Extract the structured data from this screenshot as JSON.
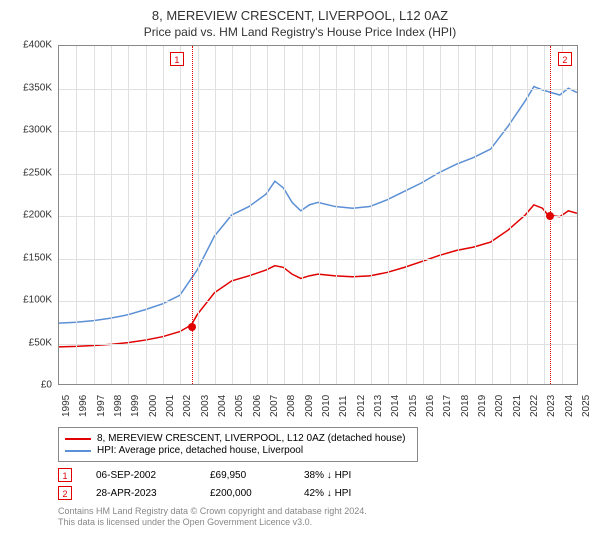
{
  "title": "8, MEREVIEW CRESCENT, LIVERPOOL, L12 0AZ",
  "subtitle": "Price paid vs. HM Land Registry's House Price Index (HPI)",
  "chart": {
    "type": "line",
    "background_color": "#ffffff",
    "grid_color": "#e0e0e0",
    "border_color": "#888888",
    "y_axis": {
      "min": 0,
      "max": 400000,
      "step": 50000,
      "labels": [
        "£0",
        "£50K",
        "£100K",
        "£150K",
        "£200K",
        "£250K",
        "£300K",
        "£350K",
        "£400K"
      ]
    },
    "x_axis": {
      "min": 1995,
      "max": 2025,
      "step": 1,
      "labels": [
        "1995",
        "1996",
        "1997",
        "1998",
        "1999",
        "2000",
        "2001",
        "2002",
        "2003",
        "2004",
        "2005",
        "2006",
        "2007",
        "2008",
        "2009",
        "2010",
        "2011",
        "2012",
        "2013",
        "2014",
        "2015",
        "2016",
        "2017",
        "2018",
        "2019",
        "2020",
        "2021",
        "2022",
        "2023",
        "2024",
        "2025"
      ]
    },
    "series": [
      {
        "name": "price_paid",
        "label": "8, MEREVIEW CRESCENT, LIVERPOOL, L12 0AZ (detached house)",
        "color": "#e00000",
        "line_width": 1.5,
        "data": [
          [
            1995,
            44000
          ],
          [
            1996,
            44500
          ],
          [
            1997,
            45500
          ],
          [
            1998,
            47000
          ],
          [
            1999,
            49000
          ],
          [
            2000,
            52000
          ],
          [
            2001,
            56000
          ],
          [
            2002,
            62000
          ],
          [
            2002.67,
            69950
          ],
          [
            2003,
            82000
          ],
          [
            2004,
            108000
          ],
          [
            2005,
            122000
          ],
          [
            2006,
            128000
          ],
          [
            2007,
            135000
          ],
          [
            2007.5,
            140000
          ],
          [
            2008,
            138000
          ],
          [
            2008.5,
            130000
          ],
          [
            2009,
            125000
          ],
          [
            2009.5,
            128000
          ],
          [
            2010,
            130000
          ],
          [
            2011,
            128000
          ],
          [
            2012,
            127000
          ],
          [
            2013,
            128000
          ],
          [
            2014,
            132000
          ],
          [
            2015,
            138000
          ],
          [
            2016,
            145000
          ],
          [
            2017,
            152000
          ],
          [
            2018,
            158000
          ],
          [
            2019,
            162000
          ],
          [
            2020,
            168000
          ],
          [
            2021,
            182000
          ],
          [
            2022,
            200000
          ],
          [
            2022.5,
            212000
          ],
          [
            2023,
            208000
          ],
          [
            2023.32,
            200000
          ],
          [
            2024,
            198000
          ],
          [
            2024.5,
            205000
          ],
          [
            2025,
            202000
          ]
        ]
      },
      {
        "name": "hpi",
        "label": "HPI: Average price, detached house, Liverpool",
        "color": "#5b8fd6",
        "line_width": 1.5,
        "data": [
          [
            1995,
            72000
          ],
          [
            1996,
            73000
          ],
          [
            1997,
            75000
          ],
          [
            1998,
            78000
          ],
          [
            1999,
            82000
          ],
          [
            2000,
            88000
          ],
          [
            2001,
            95000
          ],
          [
            2002,
            105000
          ],
          [
            2003,
            135000
          ],
          [
            2004,
            175000
          ],
          [
            2005,
            200000
          ],
          [
            2006,
            210000
          ],
          [
            2007,
            225000
          ],
          [
            2007.5,
            240000
          ],
          [
            2008,
            232000
          ],
          [
            2008.5,
            215000
          ],
          [
            2009,
            205000
          ],
          [
            2009.5,
            212000
          ],
          [
            2010,
            215000
          ],
          [
            2011,
            210000
          ],
          [
            2012,
            208000
          ],
          [
            2013,
            210000
          ],
          [
            2014,
            218000
          ],
          [
            2015,
            228000
          ],
          [
            2016,
            238000
          ],
          [
            2017,
            250000
          ],
          [
            2018,
            260000
          ],
          [
            2019,
            268000
          ],
          [
            2020,
            278000
          ],
          [
            2021,
            305000
          ],
          [
            2022,
            335000
          ],
          [
            2022.5,
            352000
          ],
          [
            2023,
            348000
          ],
          [
            2023.5,
            345000
          ],
          [
            2024,
            342000
          ],
          [
            2024.5,
            350000
          ],
          [
            2025,
            345000
          ]
        ]
      }
    ],
    "markers": [
      {
        "id": "1",
        "x": 2002.67,
        "y": 69950,
        "color": "#e00000"
      },
      {
        "id": "2",
        "x": 2023.32,
        "y": 200000,
        "color": "#e00000"
      }
    ]
  },
  "legend": {
    "items": [
      {
        "color": "#e00000",
        "label": "8, MEREVIEW CRESCENT, LIVERPOOL, L12 0AZ (detached house)"
      },
      {
        "color": "#5b8fd6",
        "label": "HPI: Average price, detached house, Liverpool"
      }
    ]
  },
  "transactions": [
    {
      "id": "1",
      "color": "#e00000",
      "date": "06-SEP-2002",
      "price": "£69,950",
      "delta": "38% ↓ HPI"
    },
    {
      "id": "2",
      "color": "#e00000",
      "date": "28-APR-2023",
      "price": "£200,000",
      "delta": "42% ↓ HPI"
    }
  ],
  "footer": {
    "line1": "Contains HM Land Registry data © Crown copyright and database right 2024.",
    "line2": "This data is licensed under the Open Government Licence v3.0."
  }
}
